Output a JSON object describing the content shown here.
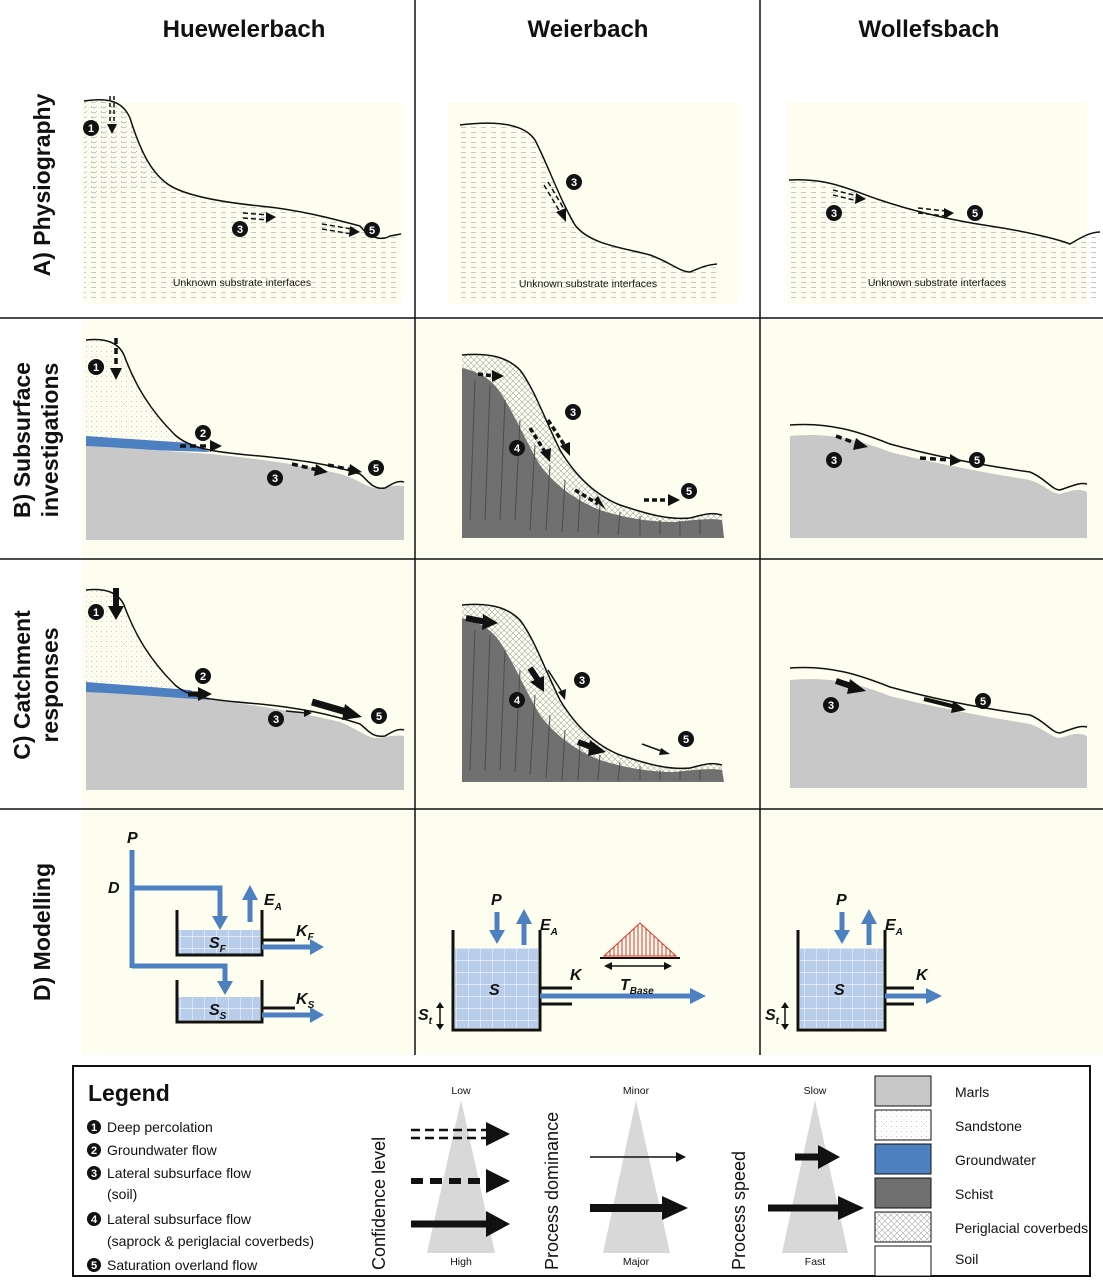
{
  "columns": [
    "Huewelerbach",
    "Weierbach",
    "Wollefsbach"
  ],
  "rows": [
    "A) Physiography",
    "B) Subsurface investigations",
    "C) Catchment responses",
    "D) Modelling"
  ],
  "row_lines": {
    "b": [
      "B) Subsurface",
      "investigations"
    ],
    "c": [
      "C) Catchment",
      "responses"
    ]
  },
  "physiography_note": "Unknown substrate interfaces",
  "model_labels": {
    "P": "P",
    "D": "D",
    "E": "E",
    "E_sub": "A",
    "K": "K",
    "KF_sub": "F",
    "KS_sub": "S",
    "S": "S",
    "SF_sub": "F",
    "SS_sub": "S",
    "St": "S",
    "St_sub": "t",
    "T": "T",
    "T_sub": "Base"
  },
  "legend": {
    "title": "Legend",
    "processes": [
      {
        "num": "1",
        "text": "Deep percolation"
      },
      {
        "num": "2",
        "text": "Groundwater flow"
      },
      {
        "num": "3",
        "text": "Lateral subsurface flow",
        "text2": "(soil)"
      },
      {
        "num": "4",
        "text": "Lateral subsurface flow",
        "text2": "(saprock & periglacial coverbeds)"
      },
      {
        "num": "5",
        "text": "Saturation overland flow"
      }
    ],
    "confidence": {
      "label": "Confidence level",
      "top": "Low",
      "bottom": "High"
    },
    "dominance": {
      "label": "Process dominance",
      "top": "Minor",
      "bottom": "Major"
    },
    "speed": {
      "label": "Process speed",
      "top": "Slow",
      "bottom": "Fast"
    },
    "materials": [
      {
        "name": "Marls",
        "color": "#c8c8c8"
      },
      {
        "name": "Sandstone",
        "color": "#f1f1ec"
      },
      {
        "name": "Groundwater",
        "color": "#4d80c0"
      },
      {
        "name": "Schist",
        "color": "#707070"
      },
      {
        "name": "Periglacial coverbeds",
        "color": "#e8e8e8"
      },
      {
        "name": "Soil",
        "color": "#ffffff"
      }
    ]
  },
  "colors": {
    "panel_bg": "#fefef0",
    "water": "#4d80c0",
    "marl": "#c8c8c8",
    "schist": "#707070",
    "tank": "#b8cdea",
    "red": "#e03020"
  }
}
